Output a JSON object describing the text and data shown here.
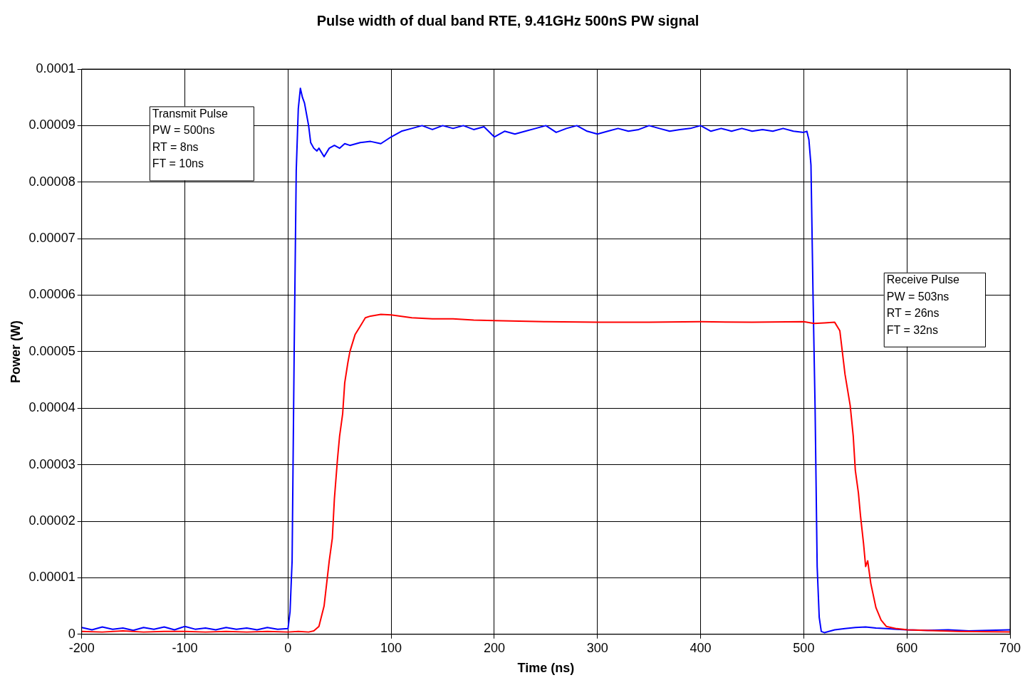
{
  "chart_data": {
    "type": "line",
    "title": "Pulse width of dual band RTE, 9.41GHz 500nS PW signal",
    "xlabel": "Time (ns)",
    "ylabel": "Power (W)",
    "xlim": [
      -200,
      700
    ],
    "xticks": [
      -200,
      -100,
      0,
      100,
      200,
      300,
      400,
      500,
      600,
      700
    ],
    "ylim": [
      0,
      0.0001
    ],
    "yticks": [
      {
        "value": 0,
        "label": "0"
      },
      {
        "value": 1e-05,
        "label": "0.00001"
      },
      {
        "value": 2e-05,
        "label": "0.00002"
      },
      {
        "value": 3e-05,
        "label": "0.00003"
      },
      {
        "value": 4e-05,
        "label": "0.00004"
      },
      {
        "value": 5e-05,
        "label": "0.00005"
      },
      {
        "value": 6e-05,
        "label": "0.00006"
      },
      {
        "value": 7e-05,
        "label": "0.00007"
      },
      {
        "value": 8e-05,
        "label": "0.00008"
      },
      {
        "value": 9e-05,
        "label": "0.00009"
      },
      {
        "value": 0.0001,
        "label": "0.0001"
      }
    ],
    "grid": true,
    "legend": false,
    "marker": "none",
    "line_style": "solid",
    "annotations": [
      "Transmit Pulse\nPW = 500ns\nRT = 8ns\nFT = 10ns",
      "Receive Pulse\nPW = 503ns\nRT = 26ns\nFT = 32ns"
    ],
    "series": [
      {
        "color": "#0000ff",
        "x": [
          -200,
          -190,
          -180,
          -170,
          -160,
          -150,
          -140,
          -130,
          -120,
          -110,
          -100,
          -90,
          -80,
          -70,
          -60,
          -50,
          -40,
          -30,
          -20,
          -10,
          0,
          2,
          4,
          6,
          8,
          10,
          12,
          14,
          16,
          18,
          20,
          22,
          25,
          28,
          30,
          35,
          40,
          45,
          50,
          55,
          60,
          70,
          80,
          90,
          100,
          110,
          120,
          130,
          140,
          150,
          160,
          170,
          180,
          190,
          200,
          210,
          220,
          230,
          240,
          250,
          260,
          270,
          280,
          290,
          300,
          310,
          320,
          330,
          340,
          350,
          360,
          370,
          380,
          390,
          400,
          410,
          420,
          430,
          440,
          450,
          460,
          470,
          480,
          490,
          500,
          503,
          505,
          507,
          509,
          511,
          513,
          515,
          517,
          520,
          530,
          540,
          550,
          560,
          570,
          580,
          590,
          600,
          620,
          640,
          660,
          680,
          700
        ],
        "values": [
          1.2e-06,
          8e-07,
          1.3e-06,
          9e-07,
          1.1e-06,
          7e-07,
          1.2e-06,
          9e-07,
          1.3e-06,
          8e-07,
          1.4e-06,
          9e-07,
          1.1e-06,
          8e-07,
          1.2e-06,
          9e-07,
          1.1e-06,
          8e-07,
          1.2e-06,
          9e-07,
          1e-06,
          4e-06,
          1.3e-05,
          5e-05,
          8.2e-05,
          9.3e-05,
          9.66e-05,
          9.5e-05,
          9.4e-05,
          9.2e-05,
          9e-05,
          8.7e-05,
          8.6e-05,
          8.55e-05,
          8.6e-05,
          8.45e-05,
          8.6e-05,
          8.65e-05,
          8.6e-05,
          8.68e-05,
          8.65e-05,
          8.7e-05,
          8.72e-05,
          8.68e-05,
          8.8e-05,
          8.9e-05,
          8.95e-05,
          9e-05,
          8.93e-05,
          9e-05,
          8.95e-05,
          9e-05,
          8.93e-05,
          8.98e-05,
          8.8e-05,
          8.9e-05,
          8.85e-05,
          8.9e-05,
          8.95e-05,
          9e-05,
          8.88e-05,
          8.95e-05,
          9e-05,
          8.9e-05,
          8.85e-05,
          8.9e-05,
          8.95e-05,
          8.9e-05,
          8.93e-05,
          9e-05,
          8.95e-05,
          8.9e-05,
          8.93e-05,
          8.95e-05,
          9e-05,
          8.9e-05,
          8.95e-05,
          8.9e-05,
          8.95e-05,
          8.9e-05,
          8.93e-05,
          8.9e-05,
          8.95e-05,
          8.9e-05,
          8.88e-05,
          8.9e-05,
          8.75e-05,
          8.3e-05,
          6e-05,
          4e-05,
          1.2e-05,
          3e-06,
          5e-07,
          3e-07,
          8e-07,
          1e-06,
          1.2e-06,
          1.3e-06,
          1.1e-06,
          1e-06,
          9e-07,
          8e-07,
          7e-07,
          8e-07,
          6e-07,
          7e-07,
          8e-07
        ]
      },
      {
        "color": "#ff0000",
        "x": [
          -200,
          -180,
          -160,
          -140,
          -120,
          -100,
          -80,
          -60,
          -40,
          -20,
          0,
          10,
          20,
          25,
          30,
          35,
          40,
          43,
          45,
          48,
          50,
          53,
          55,
          58,
          60,
          65,
          70,
          75,
          80,
          90,
          100,
          120,
          140,
          160,
          180,
          200,
          250,
          300,
          350,
          400,
          450,
          500,
          510,
          520,
          530,
          535,
          540,
          545,
          548,
          550,
          553,
          555,
          558,
          560,
          562,
          565,
          570,
          575,
          580,
          590,
          600,
          650,
          700
        ],
        "values": [
          5e-07,
          4e-07,
          6e-07,
          4e-07,
          5e-07,
          5e-07,
          4e-07,
          5e-07,
          4e-07,
          5e-07,
          4e-07,
          5e-07,
          4e-07,
          6e-07,
          1.4e-06,
          5e-06,
          1.3e-05,
          1.7e-05,
          2.4e-05,
          3.1e-05,
          3.5e-05,
          3.9e-05,
          4.45e-05,
          4.8e-05,
          5e-05,
          5.3e-05,
          5.45e-05,
          5.6e-05,
          5.63e-05,
          5.66e-05,
          5.65e-05,
          5.6e-05,
          5.58e-05,
          5.58e-05,
          5.56e-05,
          5.55e-05,
          5.53e-05,
          5.52e-05,
          5.52e-05,
          5.53e-05,
          5.52e-05,
          5.53e-05,
          5.5e-05,
          5.51e-05,
          5.52e-05,
          5.37e-05,
          4.6e-05,
          4.05e-05,
          3.5e-05,
          2.9e-05,
          2.5e-05,
          2.1e-05,
          1.6e-05,
          1.2e-05,
          1.3e-05,
          9e-06,
          4.7e-06,
          2.5e-06,
          1.4e-06,
          1e-06,
          8e-07,
          5e-07,
          4e-07
        ]
      }
    ]
  }
}
